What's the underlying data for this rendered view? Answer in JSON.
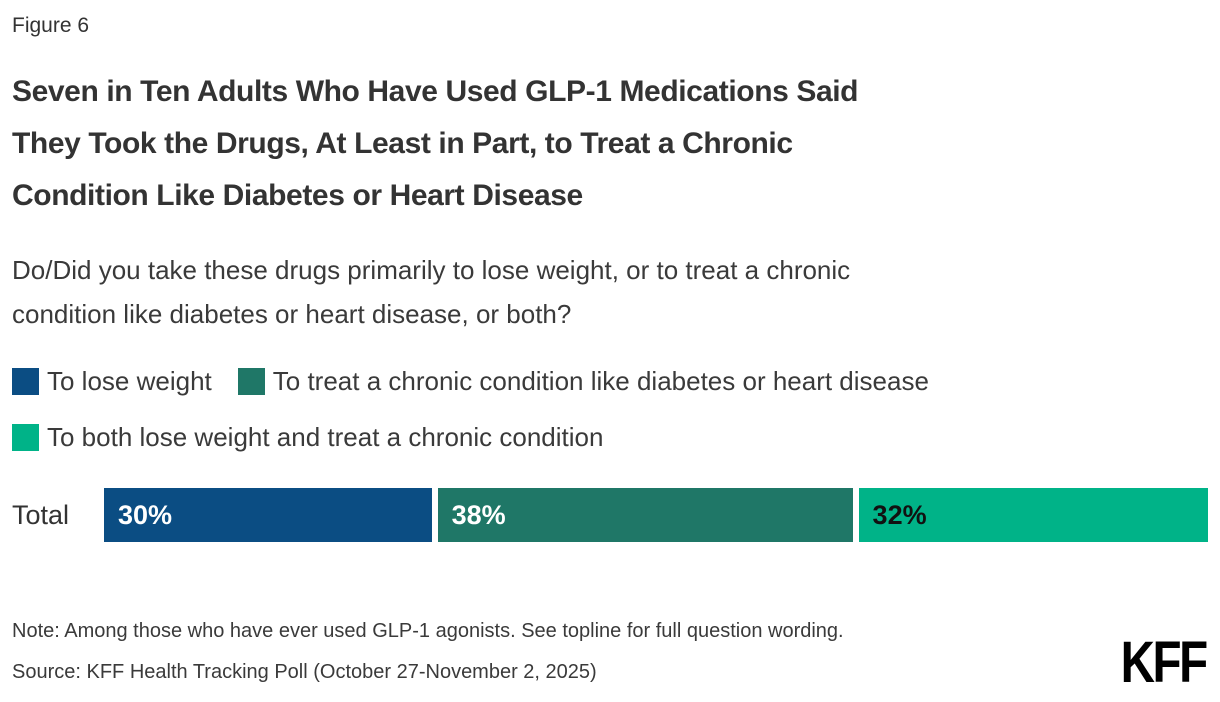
{
  "figure_label": "Figure 6",
  "title": "Seven in Ten Adults Who Have Used GLP-1 Medications Said\nThey Took the Drugs, At Least in Part, to Treat a Chronic\nCondition Like Diabetes or Heart Disease",
  "subtitle": "Do/Did you take these drugs primarily to lose weight, or to treat a chronic\ncondition like diabetes or heart disease, or both?",
  "legend": {
    "items": [
      {
        "label": "To lose weight",
        "color": "#0B4D83"
      },
      {
        "label": "To treat a chronic condition like diabetes or heart disease",
        "color": "#1F7767"
      },
      {
        "label": "To both lose weight and treat a chronic condition",
        "color": "#00B388"
      }
    ]
  },
  "chart_data": {
    "type": "bar",
    "stacked": true,
    "orientation": "horizontal",
    "categories": [
      "Total"
    ],
    "series": [
      {
        "name": "To lose weight",
        "values": [
          30
        ],
        "color": "#0B4D83",
        "label_color": "#FFFFFF"
      },
      {
        "name": "To treat a chronic condition like diabetes or heart disease",
        "values": [
          38
        ],
        "color": "#1F7767",
        "label_color": "#FFFFFF"
      },
      {
        "name": "To both lose weight and treat a chronic condition",
        "values": [
          32
        ],
        "color": "#00B388",
        "label_color": "#111111"
      }
    ],
    "value_suffix": "%",
    "xlim": [
      0,
      100
    ],
    "legend_position": "top",
    "grid": false
  },
  "note": "Note: Among those who have ever used GLP-1 agonists. See topline for full question wording.",
  "source": "Source: KFF Health Tracking Poll (October 27-November 2, 2025)",
  "logo": {
    "text": "KFF"
  },
  "colors": {
    "background": "#FFFFFF",
    "title_text": "#333333",
    "body_text": "#3A3A3A"
  }
}
